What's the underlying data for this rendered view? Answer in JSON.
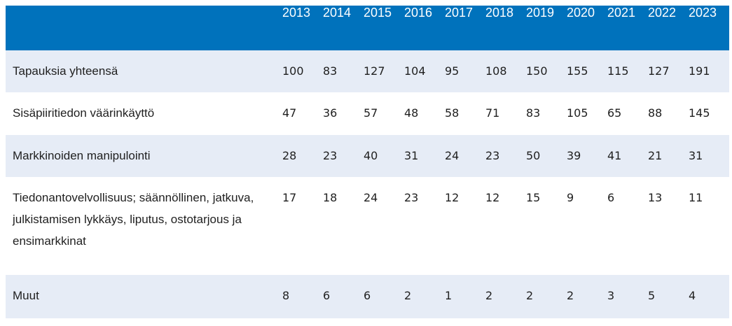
{
  "colors": {
    "header_bg": "#0072bc",
    "stripe_bg": "#e6ecf6",
    "row_bg": "#ffffff",
    "header_text": "#ffffff",
    "body_text": "#1f1f1f"
  },
  "chart_data": {
    "type": "table",
    "columns": [
      "2013",
      "2014",
      "2015",
      "2016",
      "2017",
      "2018",
      "2019",
      "2020",
      "2021",
      "2022",
      "2023"
    ],
    "rows": [
      {
        "label": "Tapauksia yhteensä",
        "values": [
          "100",
          "83",
          "127",
          "104",
          "95",
          "108",
          "150",
          "155",
          "115",
          "127",
          "191"
        ]
      },
      {
        "label": "Sisäpiiritiedon väärinkäyttö",
        "values": [
          "47",
          "36",
          "57",
          "48",
          "58",
          "71",
          "83",
          "105",
          "65",
          "88",
          "145"
        ]
      },
      {
        "label": "Markkinoiden manipulointi",
        "values": [
          "28",
          "23",
          "40",
          "31",
          "24",
          "23",
          "50",
          "39",
          "41",
          "21",
          "31"
        ]
      },
      {
        "label": "Tiedonantovelvollisuus; säännöllinen, jatkuva, julkistamisen lykkäys, liputus, ostotarjous ja ensimarkkinat",
        "values": [
          "17",
          "18",
          "24",
          "23",
          "12",
          "12",
          "15",
          "9",
          "6",
          "13",
          "11"
        ]
      },
      {
        "label": "Muut",
        "values": [
          "8",
          "6",
          "6",
          "2",
          "1",
          "2",
          "2",
          "2",
          "3",
          "5",
          "4"
        ]
      }
    ]
  }
}
